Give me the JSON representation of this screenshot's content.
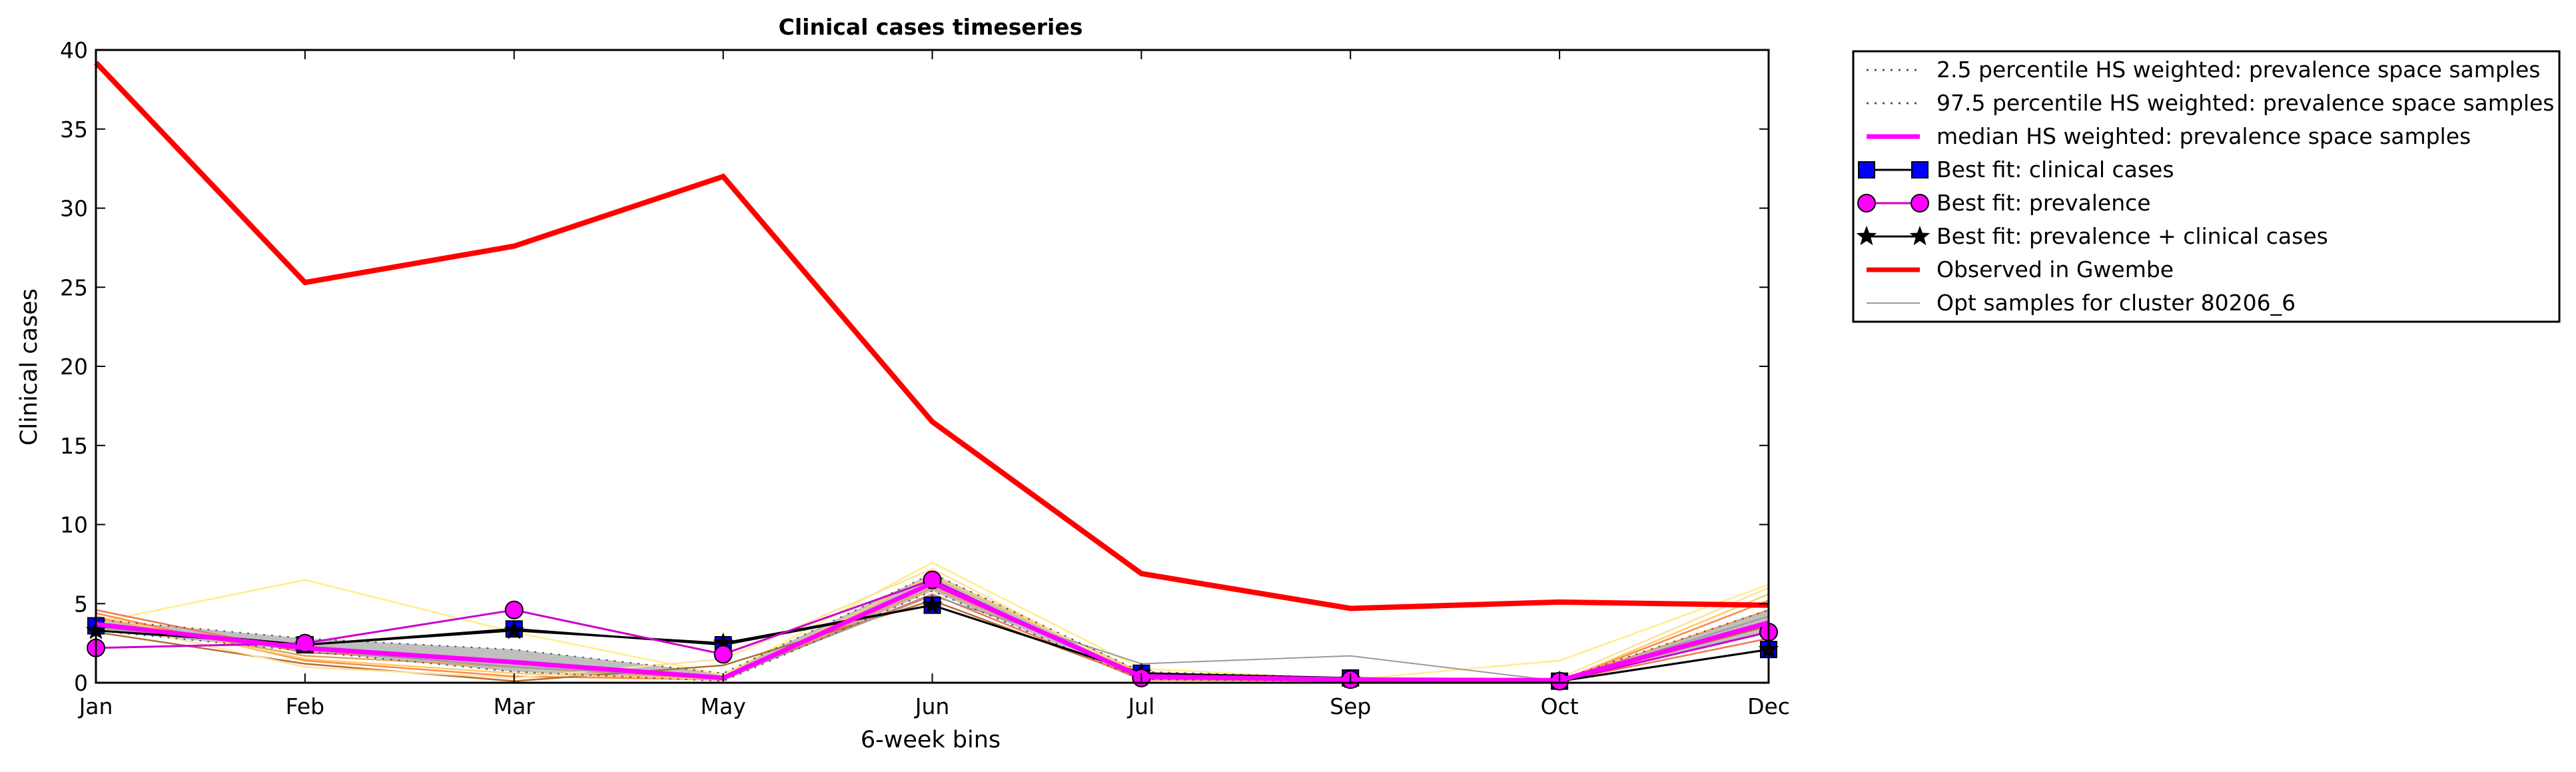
{
  "chart_data": {
    "type": "line",
    "title": "Clinical cases timeseries",
    "xlabel": "6-week bins",
    "ylabel": "Clinical cases",
    "categories": [
      "Jan",
      "Feb",
      "Mar",
      "May",
      "Jun",
      "Jul",
      "Sep",
      "Oct",
      "Dec"
    ],
    "ylim": [
      0,
      40
    ],
    "yticks": [
      0,
      5,
      10,
      15,
      20,
      25,
      30,
      35,
      40
    ],
    "grid": false,
    "legend_position": "outside-right",
    "band": {
      "lower": [
        3.3,
        2.0,
        0.7,
        0.1,
        5.8,
        0.2,
        0.1,
        0.1,
        3.2
      ],
      "upper": [
        4.0,
        2.8,
        2.1,
        0.6,
        6.9,
        0.7,
        0.3,
        0.2,
        4.6
      ],
      "color": "#bfbfbf"
    },
    "series": [
      {
        "name": "2.5 percentile HS weighted: prevalence space samples",
        "values": [
          3.3,
          2.0,
          0.7,
          0.1,
          5.8,
          0.2,
          0.1,
          0.1,
          3.2
        ],
        "color": "#555555",
        "style": "dotted",
        "marker": "none"
      },
      {
        "name": "97.5 percentile HS weighted: prevalence space samples",
        "values": [
          4.0,
          2.8,
          2.1,
          0.6,
          6.9,
          0.7,
          0.3,
          0.2,
          4.6
        ],
        "color": "#555555",
        "style": "dotted",
        "marker": "none"
      },
      {
        "name": "median HS weighted: prevalence space samples",
        "values": [
          3.7,
          2.2,
          1.3,
          0.3,
          6.3,
          0.4,
          0.2,
          0.15,
          3.8
        ],
        "color": "#ff00ff",
        "style": "solid",
        "marker": "none",
        "width": 7
      },
      {
        "name": "Best fit: clinical cases",
        "values": [
          3.6,
          2.4,
          3.4,
          2.4,
          4.9,
          0.6,
          0.3,
          0.1,
          2.1
        ],
        "color": "#000000",
        "style": "solid",
        "marker": "square",
        "markerColor": "#0000ff",
        "width": 3
      },
      {
        "name": "Best fit: prevalence",
        "values": [
          2.2,
          2.5,
          4.6,
          1.8,
          6.5,
          0.3,
          0.2,
          0.1,
          3.2
        ],
        "color": "#cc00cc",
        "style": "solid",
        "marker": "circle",
        "markerColor": "#ff00ff",
        "width": 3
      },
      {
        "name": "Best fit: prevalence + clinical cases",
        "values": [
          3.3,
          2.4,
          3.3,
          2.5,
          4.9,
          0.6,
          0.2,
          0.1,
          2.1
        ],
        "color": "#000000",
        "style": "solid",
        "marker": "star",
        "markerColor": "#000000",
        "width": 3
      },
      {
        "name": "Observed in Gwembe",
        "values": [
          39.2,
          25.3,
          27.6,
          32.0,
          16.5,
          6.9,
          4.7,
          5.1,
          4.9
        ],
        "color": "#ff0000",
        "style": "solid",
        "marker": "none",
        "width": 8
      },
      {
        "name": "Opt samples for cluster 80206_6",
        "values": [
          3.5,
          2.1,
          1.0,
          0.3,
          5.5,
          1.2,
          1.7,
          0.1,
          4.2
        ],
        "color": "#999999",
        "style": "solid",
        "marker": "none",
        "width": 2
      }
    ],
    "sample_lines": [
      {
        "values": [
          3.8,
          6.5,
          3.2,
          0.5,
          7.6,
          0.9,
          0.2,
          1.4,
          6.2
        ],
        "color": "#ffee88"
      },
      {
        "values": [
          4.4,
          1.4,
          0.4,
          0.2,
          6.2,
          0.4,
          0.1,
          0.1,
          5.2
        ],
        "color": "#ff8844"
      },
      {
        "values": [
          4.1,
          1.7,
          1.0,
          0.2,
          6.0,
          0.5,
          0.2,
          0.1,
          4.6
        ],
        "color": "#e0a060"
      },
      {
        "values": [
          3.2,
          1.2,
          0.1,
          1.1,
          5.2,
          0.3,
          0.1,
          0.1,
          3.6
        ],
        "color": "#b07030"
      },
      {
        "values": [
          4.2,
          1.5,
          0.6,
          0.2,
          6.8,
          0.6,
          0.1,
          0.1,
          5.6
        ],
        "color": "#ffcc66"
      },
      {
        "values": [
          3.9,
          1.0,
          0.3,
          1.5,
          7.2,
          0.4,
          0.2,
          0.3,
          6.0
        ],
        "color": "#ffe0a0"
      },
      {
        "values": [
          4.6,
          1.9,
          1.4,
          0.3,
          5.6,
          0.2,
          0.1,
          0.1,
          2.8
        ],
        "color": "#ee7755"
      }
    ]
  }
}
